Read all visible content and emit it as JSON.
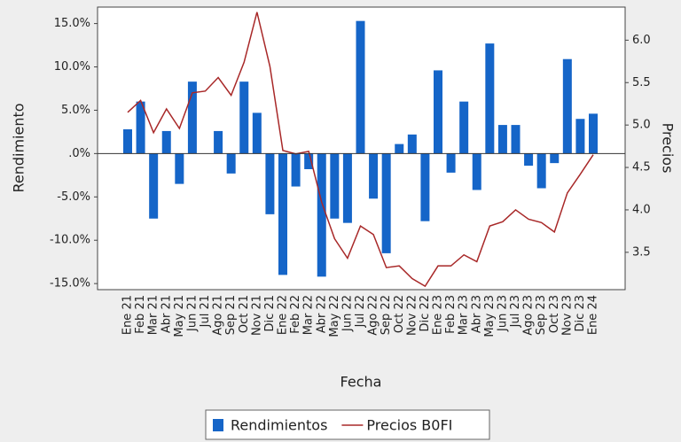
{
  "chart_data": {
    "type": "bar-line",
    "xlabel": "Fecha",
    "ylabel": "Rendimiento",
    "y2label": "Precios",
    "categories": [
      "Ene 21",
      "Feb 21",
      "Mar 21",
      "Abr 21",
      "May 21",
      "Jun 21",
      "Jul 21",
      "Ago 21",
      "Sep 21",
      "Oct 21",
      "Nov 21",
      "Dic 21",
      "Ene 22",
      "Feb 22",
      "Mar 22",
      "Abr 22",
      "May 22",
      "Jun 22",
      "Jul 22",
      "Ago 22",
      "Sep 22",
      "Oct 22",
      "Nov 22",
      "Dic 22",
      "Ene 23",
      "Feb 23",
      "Mar 23",
      "Abr 23",
      "May 23",
      "Jun 23",
      "Jul 23",
      "Ago 23",
      "Sep 23",
      "Oct 23",
      "Nov 23",
      "Dic 23",
      "Ene 24"
    ],
    "series": [
      {
        "name": "Rendimientos",
        "type": "bar",
        "color": "#1565c8",
        "values": [
          2.8,
          6.0,
          -7.5,
          2.6,
          -3.5,
          8.3,
          0,
          2.6,
          -2.3,
          8.3,
          4.7,
          -7.0,
          -14.0,
          -3.8,
          -1.8,
          -14.2,
          -7.5,
          -8.0,
          15.3,
          -5.2,
          -11.5,
          1.1,
          2.2,
          -7.8,
          9.6,
          -2.2,
          6.0,
          -4.2,
          12.7,
          3.3,
          3.3,
          -1.4,
          -4.0,
          -1.1,
          10.9,
          4.0,
          4.6
        ]
      },
      {
        "name": "Precios B0FI",
        "type": "line",
        "axis": "y2",
        "color": "#a82828",
        "values": [
          5.15,
          5.29,
          4.91,
          5.19,
          4.96,
          5.38,
          5.4,
          5.56,
          5.35,
          5.74,
          6.33,
          5.69,
          4.7,
          4.66,
          4.69,
          4.09,
          3.66,
          3.43,
          3.81,
          3.71,
          3.32,
          3.34,
          3.19,
          3.1,
          3.34,
          3.34,
          3.47,
          3.39,
          3.81,
          3.86,
          4.0,
          3.89,
          3.85,
          3.74,
          4.2,
          4.42,
          4.65
        ]
      }
    ],
    "ylim": [
      -15.7,
      16.9
    ],
    "yticks": [
      {
        "value": 15,
        "label": "15.0%"
      },
      {
        "value": 10,
        "label": "10.0%"
      },
      {
        "value": 5,
        "label": "5.0%"
      },
      {
        "value": 0,
        "label": ".0%"
      },
      {
        "value": -5,
        "label": "-5.0%"
      },
      {
        "value": -10,
        "label": "-10.0%"
      },
      {
        "value": -15,
        "label": "-15.0%"
      }
    ],
    "y2lim": [
      3.06,
      6.39
    ],
    "y2ticks": [
      {
        "value": 6,
        "label": "6.0"
      },
      5.5,
      {
        "value": 5,
        "label": "5.0"
      },
      4.5,
      {
        "value": 4,
        "label": "4.0"
      },
      3.5
    ],
    "legend": "bottom"
  }
}
